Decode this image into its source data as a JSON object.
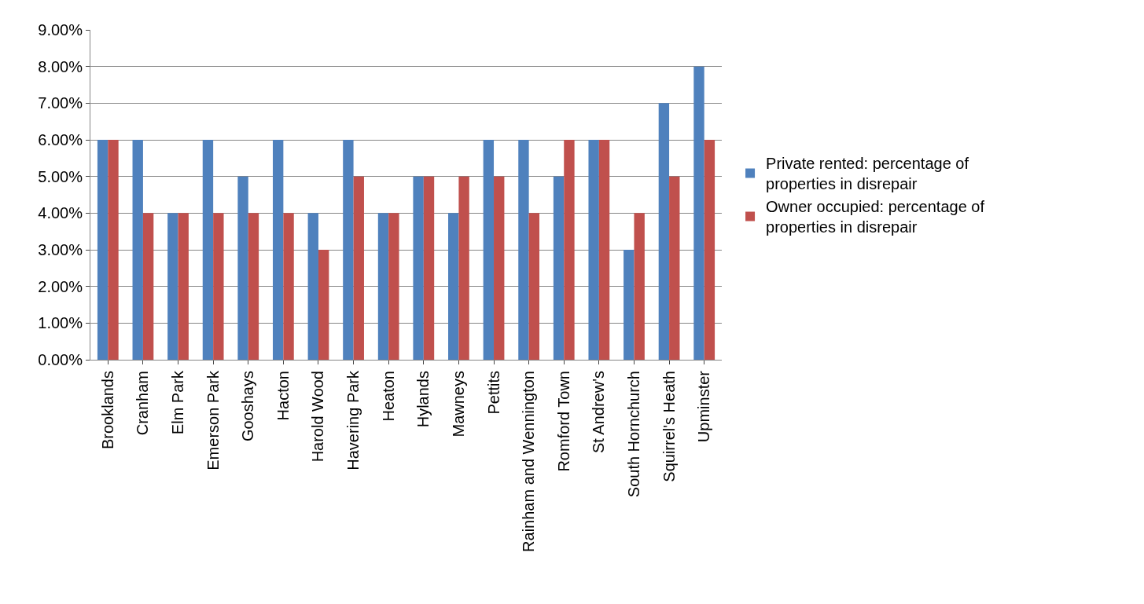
{
  "chart_data": {
    "type": "bar",
    "categories": [
      "Brooklands",
      "Cranham",
      "Elm Park",
      "Emerson Park",
      "Gooshays",
      "Hacton",
      "Harold Wood",
      "Havering Park",
      "Heaton",
      "Hylands",
      "Mawneys",
      "Pettits",
      "Rainham and Wennington",
      "Romford Town",
      "St Andrew's",
      "South Hornchurch",
      "Squirrel's Heath",
      "Upminster"
    ],
    "series": [
      {
        "name": "Private rented: percentage of properties in disrepair",
        "color": "#4f81bd",
        "values": [
          6,
          6,
          4,
          6,
          5,
          6,
          4,
          6,
          4,
          5,
          4,
          6,
          6,
          5,
          6,
          3,
          7,
          8
        ]
      },
      {
        "name": "Owner occupied: percentage of properties in disrepair",
        "color": "#c0504d",
        "values": [
          6,
          4,
          4,
          4,
          4,
          4,
          3,
          5,
          4,
          5,
          5,
          5,
          4,
          6,
          6,
          4,
          5,
          6
        ]
      }
    ],
    "ylim": [
      0,
      9
    ],
    "yticks": [
      {
        "value": 0,
        "label": "0.00%"
      },
      {
        "value": 1,
        "label": "1.00%"
      },
      {
        "value": 2,
        "label": "2.00%"
      },
      {
        "value": 3,
        "label": "3.00%"
      },
      {
        "value": 4,
        "label": "4.00%"
      },
      {
        "value": 5,
        "label": "5.00%"
      },
      {
        "value": 6,
        "label": "6.00%"
      },
      {
        "value": 7,
        "label": "7.00%"
      },
      {
        "value": 8,
        "label": "8.00%"
      },
      {
        "value": 9,
        "label": "9.00%"
      }
    ],
    "grid": "y",
    "legend": "right"
  }
}
